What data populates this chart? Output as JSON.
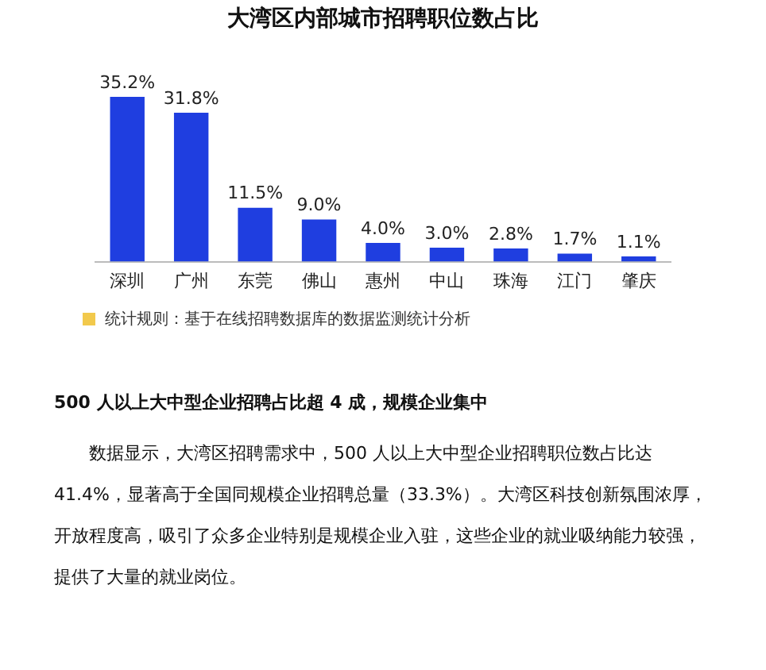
{
  "chart_data": {
    "type": "bar",
    "title": "大湾区内部城市招聘职位数占比",
    "categories": [
      "深圳",
      "广州",
      "东莞",
      "佛山",
      "惠州",
      "中山",
      "珠海",
      "江门",
      "肇庆"
    ],
    "values": [
      35.2,
      31.8,
      11.5,
      9.0,
      4.0,
      3.0,
      2.8,
      1.7,
      1.1
    ],
    "value_labels": [
      "35.2%",
      "31.8%",
      "11.5%",
      "9.0%",
      "4.0%",
      "3.0%",
      "2.8%",
      "1.7%",
      "1.1%"
    ],
    "color": "#1f3ee0",
    "grid": false,
    "legend": false,
    "tick_labels": "x",
    "annotations": [
      "统计规则：基于在线招聘数据库的数据监测统计分析",
      "500 人以上大中型企业招聘占比超 4 成，规模企业集中",
      "数据显示，大湾区招聘需求中，500 人以上大中型企业招聘职位数占比达 41.4%，显著高于全国同规模企业招聘总量（33.3%）。大湾区科技创新氛围浓厚，开放程度高，吸引了众多企业特别是规模企业入驻，这些企业的就业吸纳能力较强，提供了大量的就业岗位。"
    ]
  }
}
